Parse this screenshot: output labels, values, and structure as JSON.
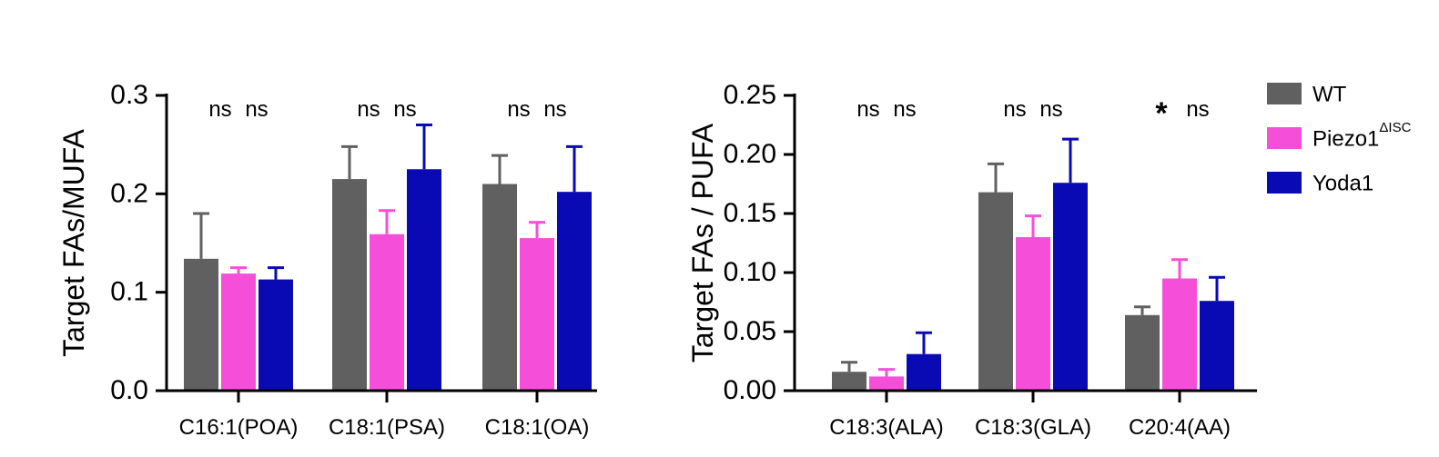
{
  "colors": {
    "WT": "#606060",
    "Piezo1": "#f54fd9",
    "Yoda1": "#0a0ab4"
  },
  "legend": {
    "entries": [
      {
        "key": "WT",
        "label": "WT",
        "sup": ""
      },
      {
        "key": "Piezo1",
        "label": "Piezo1",
        "sup": "ΔISC"
      },
      {
        "key": "Yoda1",
        "label": "Yoda1",
        "sup": ""
      }
    ]
  },
  "chart_data": [
    {
      "type": "bar",
      "ylabel": "Target FAs/MUFA",
      "ylim": [
        0,
        0.3
      ],
      "yticks": [
        0.0,
        0.1,
        0.2,
        0.3
      ],
      "ytick_labels": [
        "0.0",
        "0.1",
        "0.2",
        "0.3"
      ],
      "categories": [
        "C16:1(POA)",
        "C18:1(PSA)",
        "C18:1(OA)"
      ],
      "series": [
        {
          "name": "WT",
          "values": [
            0.134,
            0.215,
            0.21
          ],
          "errors": [
            0.046,
            0.033,
            0.029
          ]
        },
        {
          "name": "Piezo1",
          "values": [
            0.119,
            0.159,
            0.155
          ],
          "errors": [
            0.006,
            0.024,
            0.016
          ]
        },
        {
          "name": "Yoda1",
          "values": [
            0.113,
            0.225,
            0.202
          ],
          "errors": [
            0.012,
            0.045,
            0.046
          ]
        }
      ],
      "significance": [
        [
          "ns",
          "ns"
        ],
        [
          "ns",
          "ns"
        ],
        [
          "ns",
          "ns"
        ]
      ]
    },
    {
      "type": "bar",
      "ylabel": "Target FAs / PUFA",
      "ylim": [
        0,
        0.25
      ],
      "yticks": [
        0.0,
        0.05,
        0.1,
        0.15,
        0.2,
        0.25
      ],
      "ytick_labels": [
        "0.00",
        "0.05",
        "0.10",
        "0.15",
        "0.20",
        "0.25"
      ],
      "categories": [
        "C18:3(ALA)",
        "C18:3(GLA)",
        "C20:4(AA)"
      ],
      "series": [
        {
          "name": "WT",
          "values": [
            0.016,
            0.168,
            0.064
          ],
          "errors": [
            0.008,
            0.024,
            0.007
          ]
        },
        {
          "name": "Piezo1",
          "values": [
            0.012,
            0.13,
            0.095
          ],
          "errors": [
            0.006,
            0.018,
            0.016
          ]
        },
        {
          "name": "Yoda1",
          "values": [
            0.031,
            0.176,
            0.076
          ],
          "errors": [
            0.018,
            0.037,
            0.02
          ]
        }
      ],
      "significance": [
        [
          "ns",
          "ns"
        ],
        [
          "ns",
          "ns"
        ],
        [
          "*",
          "ns"
        ]
      ]
    }
  ]
}
